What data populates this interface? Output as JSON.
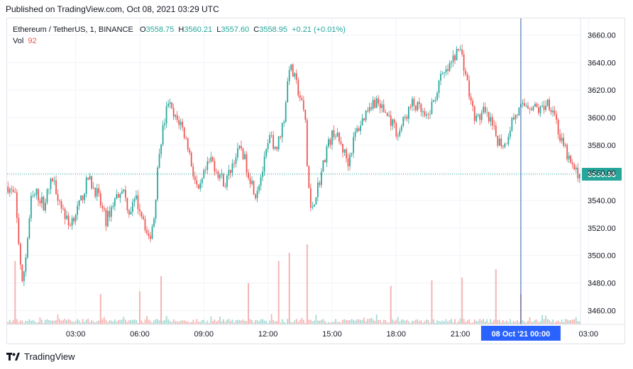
{
  "published": "Published on TradingView.com, Oct 08, 2021 03:29 UTC",
  "brand": "TradingView",
  "legend": {
    "symbol": "Ethereum / TetherUS, 1, BINANCE",
    "o_label": "O",
    "o_value": "3558.75",
    "h_label": "H",
    "h_value": "3560.21",
    "l_label": "L",
    "l_value": "3557.60",
    "c_label": "C",
    "c_value": "3558.95",
    "change": "+0.21 (+0.01%)",
    "vol_label": "Vol",
    "vol_value": "92"
  },
  "colors": {
    "up": "#26a69a",
    "down": "#ef5350",
    "crosshair": "#2a5fa5",
    "price_tag": "#26a69a",
    "time_tag": "#2962ff"
  },
  "chart_data": {
    "type": "candlestick",
    "ylim": [
      3450,
      3672
    ],
    "y_ticks": [
      3460,
      3480,
      3500,
      3520,
      3540,
      3560,
      3580,
      3600,
      3620,
      3640,
      3660
    ],
    "y_tick_labels": [
      "3460.00",
      "3480.00",
      "3500.00",
      "3520.00",
      "3540.00",
      "3560.00",
      "3580.00",
      "3600.00",
      "3620.00",
      "3640.00",
      "3660.00"
    ],
    "x_ticks": [
      "03:00",
      "06:00",
      "09:00",
      "12:00",
      "15:00",
      "18:00",
      "21:00",
      "03:00"
    ],
    "crosshair_label": "08 Oct '21   00:00",
    "last_price": 3558.95,
    "last_price_label": "3558.95",
    "price_path": [
      [
        0,
        3550
      ],
      [
        4,
        3542
      ],
      [
        6,
        3510
      ],
      [
        8,
        3478
      ],
      [
        10,
        3500
      ],
      [
        13,
        3540
      ],
      [
        16,
        3545
      ],
      [
        20,
        3537
      ],
      [
        25,
        3556
      ],
      [
        29,
        3540
      ],
      [
        34,
        3522
      ],
      [
        40,
        3536
      ],
      [
        45,
        3556
      ],
      [
        50,
        3545
      ],
      [
        55,
        3525
      ],
      [
        59,
        3538
      ],
      [
        64,
        3550
      ],
      [
        68,
        3532
      ],
      [
        72,
        3540
      ],
      [
        76,
        3528
      ],
      [
        79,
        3510
      ],
      [
        82,
        3528
      ],
      [
        85,
        3578
      ],
      [
        88,
        3598
      ],
      [
        90,
        3612
      ],
      [
        93,
        3600
      ],
      [
        97,
        3596
      ],
      [
        101,
        3580
      ],
      [
        104,
        3560
      ],
      [
        107,
        3544
      ],
      [
        110,
        3558
      ],
      [
        114,
        3570
      ],
      [
        118,
        3560
      ],
      [
        122,
        3552
      ],
      [
        127,
        3570
      ],
      [
        131,
        3578
      ],
      [
        135,
        3560
      ],
      [
        139,
        3545
      ],
      [
        143,
        3562
      ],
      [
        147,
        3585
      ],
      [
        151,
        3578
      ],
      [
        155,
        3600
      ],
      [
        158,
        3638
      ],
      [
        161,
        3628
      ],
      [
        164,
        3615
      ],
      [
        167,
        3598
      ],
      [
        168,
        3565
      ],
      [
        170,
        3532
      ],
      [
        173,
        3545
      ],
      [
        176,
        3560
      ],
      [
        179,
        3578
      ],
      [
        183,
        3590
      ],
      [
        187,
        3580
      ],
      [
        191,
        3568
      ],
      [
        195,
        3588
      ],
      [
        199,
        3598
      ],
      [
        203,
        3610
      ],
      [
        207,
        3612
      ],
      [
        211,
        3605
      ],
      [
        215,
        3598
      ],
      [
        219,
        3588
      ],
      [
        223,
        3600
      ],
      [
        227,
        3610
      ],
      [
        231,
        3606
      ],
      [
        235,
        3598
      ],
      [
        239,
        3612
      ],
      [
        243,
        3628
      ],
      [
        247,
        3634
      ],
      [
        251,
        3645
      ],
      [
        254,
        3650
      ],
      [
        257,
        3632
      ],
      [
        260,
        3610
      ],
      [
        263,
        3598
      ],
      [
        267,
        3604
      ],
      [
        271,
        3596
      ],
      [
        275,
        3584
      ],
      [
        279,
        3580
      ],
      [
        283,
        3598
      ],
      [
        287,
        3605
      ],
      [
        291,
        3610
      ],
      [
        295,
        3608
      ],
      [
        299,
        3605
      ],
      [
        303,
        3612
      ],
      [
        307,
        3604
      ],
      [
        310,
        3584
      ],
      [
        313,
        3576
      ],
      [
        316,
        3566
      ],
      [
        319,
        3560
      ],
      [
        321,
        3558.95
      ]
    ],
    "volume_spikes": [
      [
        4,
        3496
      ],
      [
        52,
        3472
      ],
      [
        74,
        3474
      ],
      [
        86,
        3485
      ],
      [
        135,
        3480
      ],
      [
        152,
        3496
      ],
      [
        158,
        3502
      ],
      [
        168,
        3508
      ],
      [
        215,
        3478
      ],
      [
        238,
        3482
      ],
      [
        255,
        3484
      ],
      [
        274,
        3490
      ],
      [
        288,
        3472
      ]
    ]
  }
}
